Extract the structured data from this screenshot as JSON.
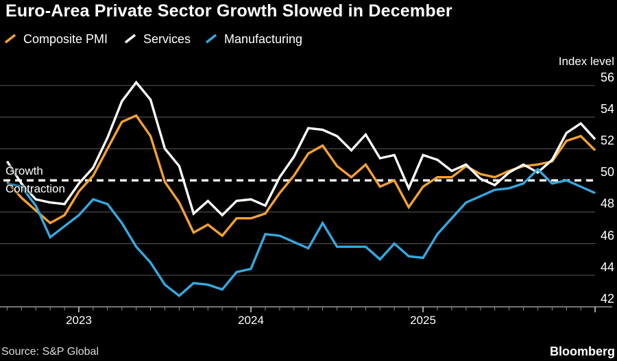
{
  "footer": {
    "source": "Source: S&P Global",
    "brand": "Bloomberg"
  },
  "colors": {
    "background": "#000000",
    "orange": "#F5A233",
    "white_line": "#FFFFFF",
    "blue": "#35A9E1",
    "gridline": "#4D4D4D",
    "axis_line": "#A8A8A8",
    "tick_minor": "#8F8F8F",
    "tick_major": "#C8C8C8",
    "text": "#FFFFFF",
    "text_dim": "#DCDCDC"
  },
  "chart_data": {
    "type": "line",
    "title": "Euro-Area Private Sector Growth Slowed in December",
    "y_axis_title": "Index level",
    "y_ticks": [
      56,
      54,
      52,
      50,
      48,
      46,
      44,
      42
    ],
    "ylim": [
      41.6,
      56.9
    ],
    "grid": "horizontal",
    "legend_position": "top",
    "x_frequency": "monthly",
    "x_year_ticks": [
      "2023",
      "2024",
      "2025"
    ],
    "baseline": {
      "value": 50,
      "style": "dashed-white",
      "label_above": "Growth",
      "label_below": "Contraction"
    },
    "categories": [
      "Jul 2022",
      "Aug 2022",
      "Sep 2022",
      "Oct 2022",
      "Nov 2022",
      "Dec 2022",
      "Jan 2023",
      "Feb 2023",
      "Mar 2023",
      "Apr 2023",
      "May 2023",
      "Jun 2023",
      "Jul 2023",
      "Aug 2023",
      "Sep 2023",
      "Oct 2023",
      "Nov 2023",
      "Dec 2023",
      "Jan 2024",
      "Feb 2024",
      "Mar 2024",
      "Apr 2024",
      "May 2024",
      "Jun 2024",
      "Jul 2024",
      "Aug 2024",
      "Sep 2024",
      "Oct 2024",
      "Nov 2024",
      "Dec 2024",
      "Jan 2025",
      "Feb 2025",
      "Mar 2025",
      "Apr 2025",
      "May 2025",
      "Jun 2025",
      "Jul 2025",
      "Aug 2025",
      "Sep 2025",
      "Oct 2025",
      "Nov 2025",
      "Dec 2025"
    ],
    "series": [
      {
        "name": "Composite PMI",
        "color": "#F5A233",
        "values": [
          49.9,
          48.9,
          48.1,
          47.3,
          47.8,
          49.3,
          50.3,
          52.0,
          53.7,
          54.1,
          52.8,
          49.9,
          48.6,
          46.7,
          47.2,
          46.5,
          47.6,
          47.6,
          47.9,
          49.2,
          50.3,
          51.7,
          52.2,
          50.9,
          50.2,
          51.0,
          49.6,
          50.0,
          48.3,
          49.6,
          50.2,
          50.2,
          50.9,
          50.4,
          50.2,
          50.6,
          50.9,
          51.0,
          51.2,
          52.5,
          52.8,
          51.9
        ]
      },
      {
        "name": "Services",
        "color": "#FFFFFF",
        "values": [
          51.2,
          49.8,
          48.8,
          48.6,
          48.5,
          49.8,
          50.8,
          52.7,
          55.0,
          56.2,
          55.1,
          52.0,
          50.9,
          47.9,
          48.7,
          47.8,
          48.7,
          48.8,
          48.4,
          50.2,
          51.5,
          53.3,
          53.2,
          52.8,
          51.9,
          52.9,
          51.4,
          51.6,
          49.5,
          51.6,
          51.3,
          50.6,
          51.0,
          50.1,
          49.7,
          50.5,
          51.0,
          50.5,
          51.3,
          53.0,
          53.6,
          52.6
        ]
      },
      {
        "name": "Manufacturing",
        "color": "#35A9E1",
        "values": [
          49.8,
          49.6,
          48.4,
          46.4,
          47.1,
          47.8,
          48.8,
          48.5,
          47.3,
          45.8,
          44.8,
          43.4,
          42.7,
          43.5,
          43.4,
          43.1,
          44.2,
          44.4,
          46.6,
          46.5,
          46.1,
          45.7,
          47.3,
          45.8,
          45.8,
          45.8,
          45.0,
          46.0,
          45.2,
          45.1,
          46.6,
          47.6,
          48.6,
          49.0,
          49.4,
          49.5,
          49.8,
          50.7,
          49.8,
          50.0,
          49.6,
          49.2
        ]
      }
    ]
  }
}
